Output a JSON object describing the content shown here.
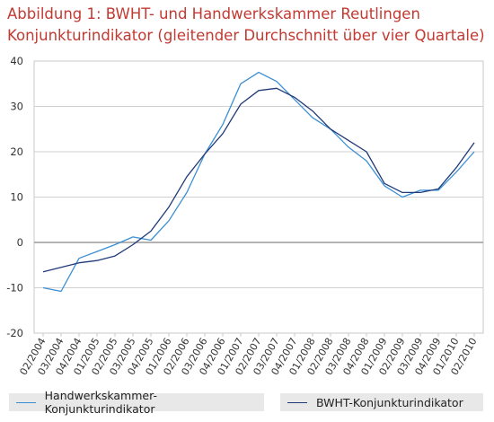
{
  "chart_data": {
    "type": "line",
    "title_line1": "Abbildung 1: BWHT- und Handwerkskammer  Reutlingen",
    "title_line2": "Konjunkturindikator (gleitender Durchschnitt über vier Quartale)",
    "xlabel": "",
    "ylabel": "",
    "ylim": [
      -20,
      40
    ],
    "yticks": [
      "-20",
      "-10",
      "0",
      "10",
      "20",
      "30",
      "40"
    ],
    "grid": true,
    "legend_position": "bottom",
    "categories": [
      "02/2004",
      "03/2004",
      "04/2004",
      "01/2005",
      "02/2005",
      "03/2005",
      "04/2005",
      "01/2006",
      "02/2006",
      "03/2006",
      "04/2006",
      "01/2007",
      "02/2007",
      "03/2007",
      "04/2007",
      "01/2008",
      "02/2008",
      "03/2008",
      "04/2008",
      "01/2009",
      "02/2009",
      "03/2009",
      "04/2009",
      "01/2010",
      "02/2010"
    ],
    "series": [
      {
        "name": "Handwerkskammer-Konjunkturindikator",
        "color": "#3b8fd4",
        "values": [
          -10,
          -10.8,
          -3.5,
          -2,
          -0.5,
          1.2,
          0.5,
          4.8,
          11,
          19.5,
          26,
          35,
          37.5,
          35.5,
          31.5,
          27.5,
          25,
          21,
          18,
          12.5,
          10,
          11.5,
          11.5,
          15.5,
          20
        ]
      },
      {
        "name": "BWHT-Konjunkturindikator",
        "color": "#1f3a78",
        "values": [
          -6.5,
          -5.5,
          -4.5,
          -4,
          -3,
          -0.5,
          2.5,
          7.8,
          14.5,
          19.5,
          24,
          30.5,
          33.5,
          34,
          32,
          29,
          25,
          22.5,
          20,
          13,
          11,
          11,
          11.8,
          16.5,
          22
        ]
      }
    ]
  }
}
